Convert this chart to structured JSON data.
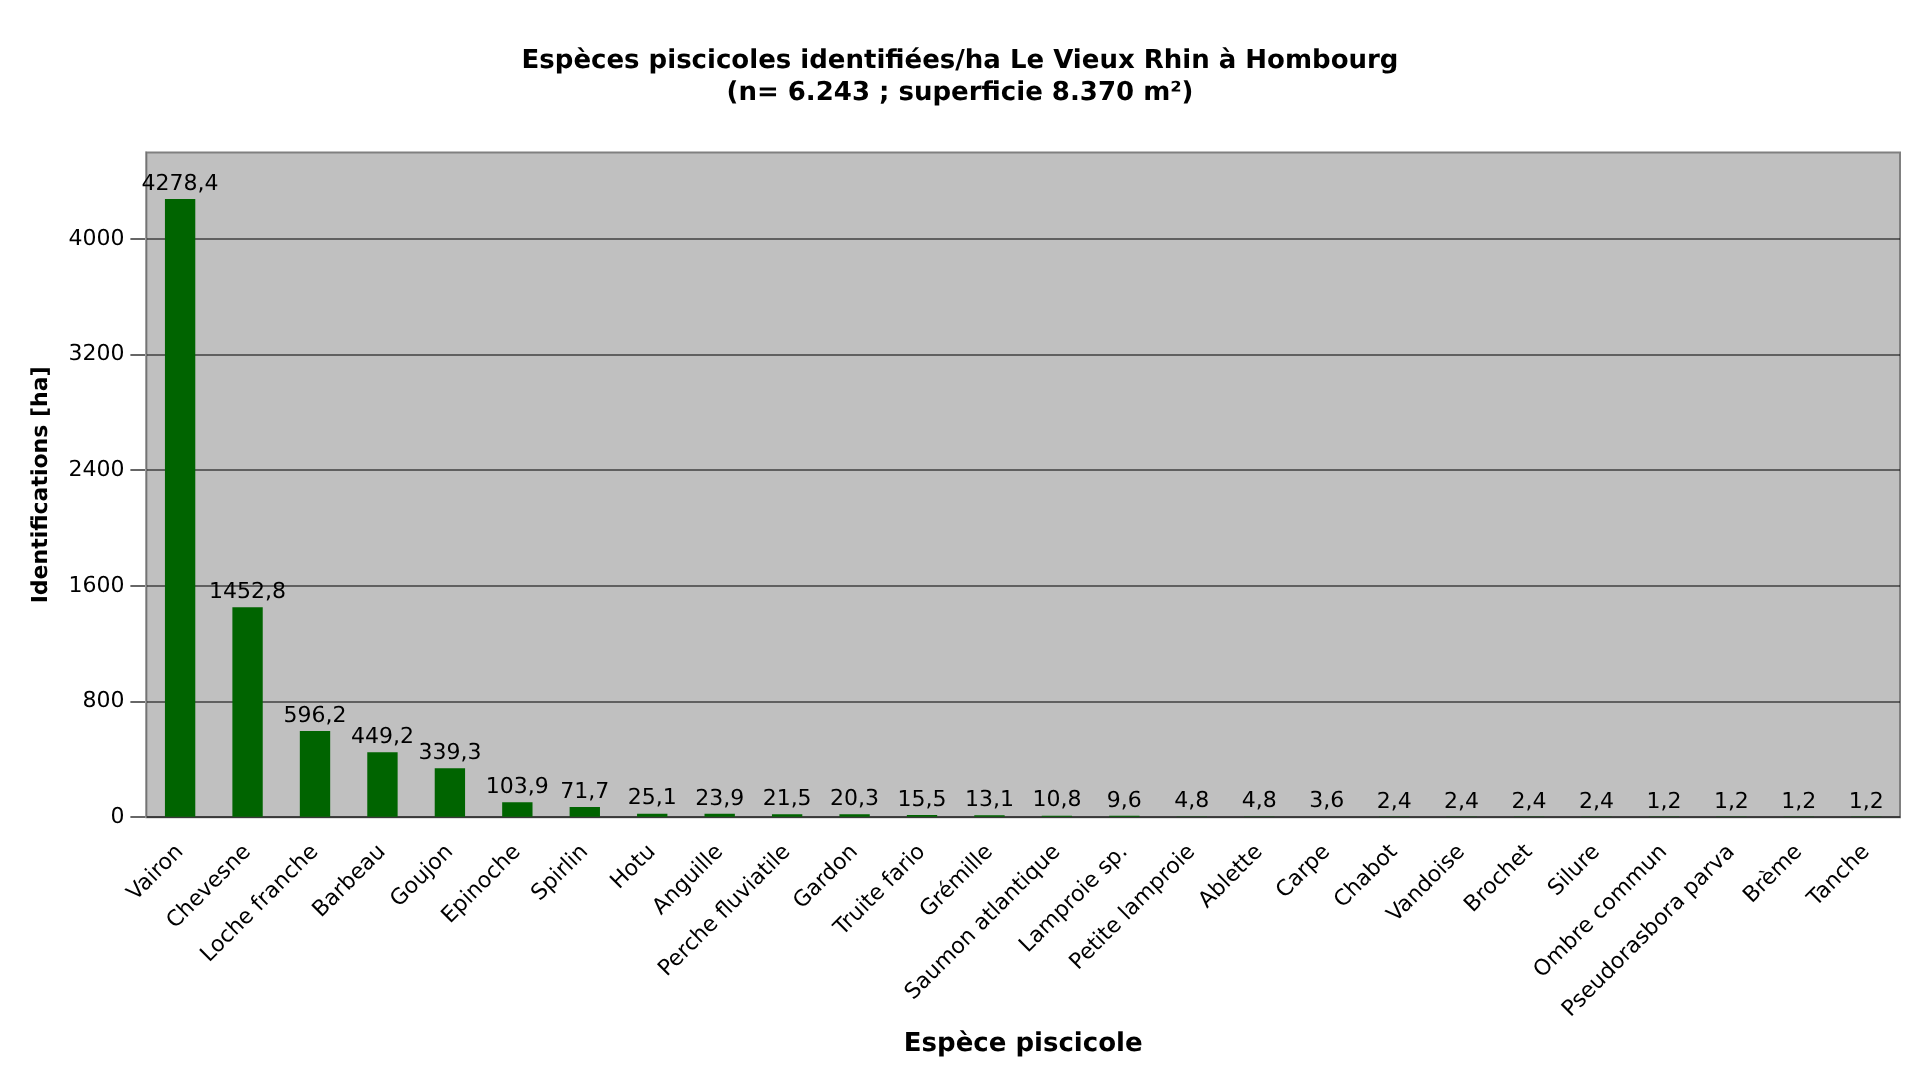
{
  "chart_data": {
    "type": "bar",
    "title": "Espèces piscicoles identifiées/ha Le Vieux Rhin à Hombourg",
    "subtitle": "(n= 6.243 ; superficie 8.370 m²)",
    "xlabel": "Espèce piscicole",
    "ylabel": "Identifications [ha]",
    "categories": [
      "Vairon",
      "Chevesne",
      "Loche franche",
      "Barbeau",
      "Goujon",
      "Epinoche",
      "Spirlin",
      "Hotu",
      "Anguille",
      "Perche fluviatile",
      "Gardon",
      "Truite fario",
      "Grémille",
      "Saumon atlantique",
      "Lamproie sp.",
      "Petite lamproie",
      "Ablette",
      "Carpe",
      "Chabot",
      "Vandoise",
      "Brochet",
      "Silure",
      "Ombre commun",
      "Pseudorasbora parva",
      "Brème",
      "Tanche"
    ],
    "values": [
      4278.4,
      1452.8,
      596.2,
      449.2,
      339.3,
      103.9,
      71.7,
      25.1,
      23.9,
      21.5,
      20.3,
      15.5,
      13.1,
      10.8,
      9.6,
      4.8,
      4.8,
      3.6,
      2.4,
      2.4,
      2.4,
      2.4,
      1.2,
      1.2,
      1.2,
      1.2
    ],
    "value_labels": [
      "4278,4",
      "1452,8",
      "596,2",
      "449,2",
      "339,3",
      "103,9",
      "71,7",
      "25,1",
      "23,9",
      "21,5",
      "20,3",
      "15,5",
      "13,1",
      "10,8",
      "9,6",
      "4,8",
      "4,8",
      "3,6",
      "2,4",
      "2,4",
      "2,4",
      "2,4",
      "1,2",
      "1,2",
      "1,2",
      "1,2"
    ],
    "color": "#006400",
    "ylim": [
      0,
      4600
    ],
    "yticks": [
      0,
      800,
      1600,
      2400,
      3200,
      4000
    ],
    "grid": "y",
    "legend": false
  }
}
